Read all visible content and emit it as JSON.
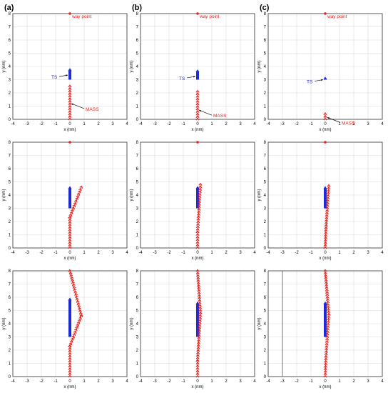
{
  "panel_labels": [
    "(a)",
    "(b)",
    "(c)"
  ],
  "colors": {
    "mass": "#e8231f",
    "ts": "#1f2bd6",
    "waypoint": "#e8231f",
    "grid": "#d9d9d9",
    "axis": "#333333"
  },
  "chart_data": [
    {
      "panel": "(a)",
      "row": 1,
      "col": 1,
      "type": "scatter",
      "xlabel": "x (nm)",
      "ylabel": "y (nm)",
      "xlim": [
        -4,
        4
      ],
      "ylim": [
        0,
        8
      ],
      "xticks": [
        -4,
        -3,
        -2,
        -1,
        0,
        1,
        2,
        3,
        4
      ],
      "yticks": [
        0,
        1,
        2,
        3,
        4,
        5,
        6,
        7,
        8
      ],
      "grid": true,
      "waypoint": {
        "x": 0,
        "y": 8,
        "label": "way point"
      },
      "ts": {
        "x": 0,
        "y_start": 3.0,
        "y_end": 3.8,
        "label": "TS"
      },
      "mass": {
        "path": [
          [
            0,
            0
          ],
          [
            0,
            2.5
          ]
        ],
        "label": "MASS"
      },
      "annotations": [
        {
          "text": "TS",
          "target": [
            0,
            3.4
          ]
        },
        {
          "text": "MASS",
          "target": [
            0,
            1.3
          ]
        }
      ]
    },
    {
      "panel": "(b)",
      "row": 1,
      "col": 2,
      "type": "scatter",
      "xlabel": "x (nm)",
      "ylabel": "y (nm)",
      "xlim": [
        -4,
        4
      ],
      "ylim": [
        0,
        8
      ],
      "xticks": [
        -4,
        -3,
        -2,
        -1,
        0,
        1,
        2,
        3,
        4
      ],
      "yticks": [
        0,
        1,
        2,
        3,
        4,
        5,
        6,
        7,
        8
      ],
      "grid": true,
      "waypoint": {
        "x": 0,
        "y": 8,
        "label": "way point"
      },
      "ts": {
        "x": 0,
        "y_start": 3.0,
        "y_end": 3.7,
        "label": "TS"
      },
      "mass": {
        "path": [
          [
            0,
            0
          ],
          [
            0,
            2.1
          ]
        ],
        "label": "MASS"
      },
      "annotations": [
        {
          "text": "TS",
          "target": [
            0,
            3.3
          ]
        },
        {
          "text": "MASS",
          "target": [
            0,
            0.8
          ]
        }
      ]
    },
    {
      "panel": "(c)",
      "row": 1,
      "col": 3,
      "type": "scatter",
      "xlabel": "x (nm)",
      "ylabel": "y (nm)",
      "xlim": [
        -4,
        4
      ],
      "ylim": [
        0,
        8
      ],
      "xticks": [
        -4,
        -3,
        -2,
        -1,
        0,
        1,
        2,
        3,
        4
      ],
      "yticks": [
        0,
        1,
        2,
        3,
        4,
        5,
        6,
        7,
        8
      ],
      "grid": true,
      "waypoint": {
        "x": 0,
        "y": 8,
        "label": "way point"
      },
      "ts": {
        "x": 0,
        "y_start": 3.0,
        "y_end": 3.15,
        "label": "TS"
      },
      "mass": {
        "path": [
          [
            0,
            0
          ],
          [
            0,
            0.4
          ]
        ],
        "label": "MASS"
      },
      "annotations": [
        {
          "text": "TS",
          "target": [
            0,
            3.05
          ]
        },
        {
          "text": "MASS",
          "target": [
            0.05,
            0.25
          ]
        }
      ]
    },
    {
      "row": 2,
      "col": 1,
      "type": "scatter",
      "xlabel": "x (nm)",
      "ylabel": "y (nm)",
      "xlim": [
        -4,
        4
      ],
      "ylim": [
        0,
        8
      ],
      "xticks": [
        -4,
        -3,
        -2,
        -1,
        0,
        1,
        2,
        3,
        4
      ],
      "yticks": [
        0,
        1,
        2,
        3,
        4,
        5,
        6,
        7,
        8
      ],
      "grid": true,
      "waypoint": {
        "x": 0,
        "y": 8
      },
      "ts": {
        "x": 0,
        "y_start": 3.0,
        "y_end": 4.6
      },
      "mass": {
        "path": [
          [
            0,
            0
          ],
          [
            0,
            2.3
          ],
          [
            0.8,
            4.6
          ]
        ]
      }
    },
    {
      "row": 2,
      "col": 2,
      "type": "scatter",
      "xlabel": "x (nm)",
      "ylabel": "y (nm)",
      "xlim": [
        -4,
        4
      ],
      "ylim": [
        0,
        8
      ],
      "xticks": [
        -4,
        -3,
        -2,
        -1,
        0,
        1,
        2,
        3,
        4
      ],
      "yticks": [
        0,
        1,
        2,
        3,
        4,
        5,
        6,
        7,
        8
      ],
      "grid": true,
      "waypoint": {
        "x": 0,
        "y": 8
      },
      "ts": {
        "x": 0,
        "y_start": 3.0,
        "y_end": 4.6
      },
      "mass": {
        "path": [
          [
            0,
            0
          ],
          [
            0,
            1.2
          ],
          [
            0.2,
            4.8
          ]
        ]
      }
    },
    {
      "row": 2,
      "col": 3,
      "type": "scatter",
      "xlabel": "x (nm)",
      "ylabel": "y (nm)",
      "xlim": [
        -4,
        4
      ],
      "ylim": [
        0,
        8
      ],
      "xticks": [
        -4,
        -3,
        -2,
        -1,
        0,
        1,
        2,
        3,
        4
      ],
      "yticks": [
        0,
        1,
        2,
        3,
        4,
        5,
        6,
        7,
        8
      ],
      "grid": true,
      "waypoint": {
        "x": 0,
        "y": 8
      },
      "ts": {
        "x": 0,
        "y_start": 3.0,
        "y_end": 4.6
      },
      "mass": {
        "path": [
          [
            0,
            0
          ],
          [
            0.05,
            1.5
          ],
          [
            0.25,
            4.7
          ]
        ]
      }
    },
    {
      "row": 3,
      "col": 1,
      "type": "scatter",
      "xlabel": "x (nm)",
      "ylabel": "y (nm)",
      "xlim": [
        -4,
        4
      ],
      "ylim": [
        0,
        8
      ],
      "xticks": [
        -4,
        -3,
        -2,
        -1,
        0,
        1,
        2,
        3,
        4
      ],
      "yticks": [
        0,
        1,
        2,
        3,
        4,
        5,
        6,
        7,
        8
      ],
      "grid": true,
      "ts": {
        "x": 0,
        "y_start": 3.0,
        "y_end": 5.9
      },
      "mass": {
        "path": [
          [
            0,
            0
          ],
          [
            0,
            2.3
          ],
          [
            0.8,
            4.6
          ],
          [
            0,
            8
          ]
        ]
      }
    },
    {
      "row": 3,
      "col": 2,
      "type": "scatter",
      "xlabel": "x (nm)",
      "ylabel": "y (nm)",
      "xlim": [
        -4,
        4
      ],
      "ylim": [
        0,
        8
      ],
      "xticks": [
        -4,
        -3,
        -2,
        -1,
        0,
        1,
        2,
        3,
        4
      ],
      "yticks": [
        0,
        1,
        2,
        3,
        4,
        5,
        6,
        7,
        8
      ],
      "grid": true,
      "ts": {
        "x": 0,
        "y_start": 3.0,
        "y_end": 5.6
      },
      "mass": {
        "path": [
          [
            0,
            0
          ],
          [
            0,
            1.2
          ],
          [
            0.2,
            4.8
          ],
          [
            0,
            8
          ]
        ]
      }
    },
    {
      "row": 3,
      "col": 3,
      "type": "scatter",
      "xlabel": "x (nm)",
      "ylabel": "y (nm)",
      "xlim": [
        -4,
        4
      ],
      "ylim": [
        0,
        8
      ],
      "xticks": [
        -4,
        -3,
        -2,
        -1,
        0,
        1,
        2,
        3,
        4
      ],
      "yticks": [
        0,
        1,
        2,
        3,
        4,
        5,
        6,
        7,
        8
      ],
      "grid": true,
      "ts": {
        "x": 0,
        "y_start": 3.0,
        "y_end": 5.6
      },
      "mass": {
        "path": [
          [
            0,
            0
          ],
          [
            0.05,
            1.5
          ],
          [
            0.25,
            4.7
          ],
          [
            0,
            8
          ]
        ]
      },
      "vertical_line_x": -3
    }
  ]
}
